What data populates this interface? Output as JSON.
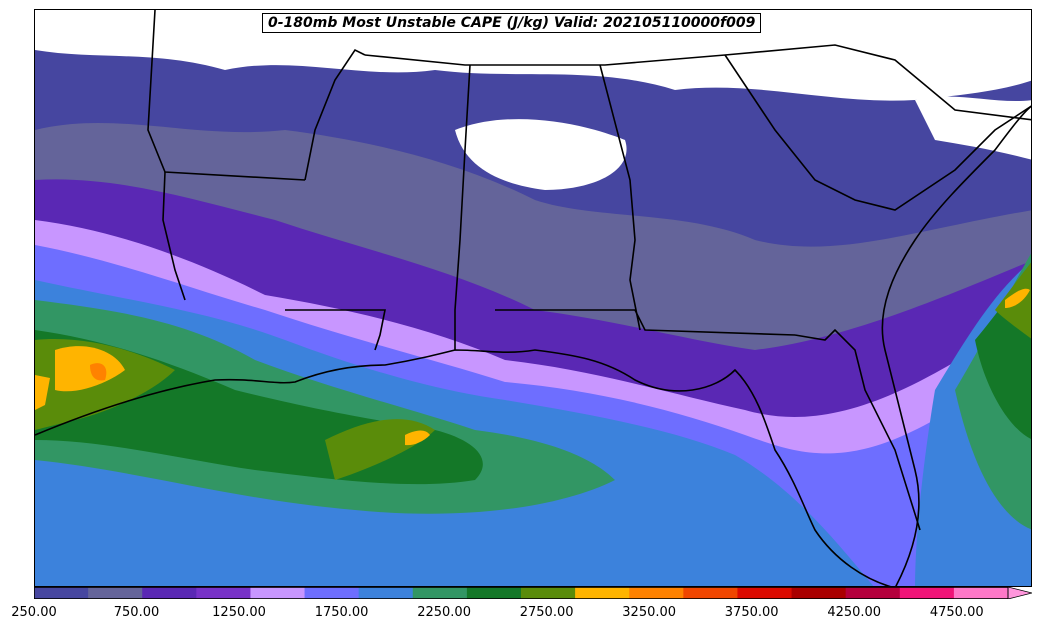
{
  "title": "0-180mb Most Unstable CAPE (J/kg) Valid: 202105110000f009",
  "colorbar": {
    "levels": [
      250,
      500,
      750,
      1000,
      1250,
      1500,
      1750,
      2000,
      2250,
      2500,
      2750,
      3000,
      3250,
      3500,
      3750,
      4000,
      4250,
      4500,
      4750,
      5000
    ],
    "colors": [
      "#4646a0",
      "#64649a",
      "#5a28b4",
      "#7832c8",
      "#c896ff",
      "#6e6eff",
      "#3c82dc",
      "#329664",
      "#147828",
      "#5a8c0a",
      "#ffb400",
      "#ff8200",
      "#f04600",
      "#dc0a00",
      "#aa0000",
      "#b4003c",
      "#f01478",
      "#ff78c8"
    ],
    "extend_color": "#ff96dc",
    "tick_labels": [
      "250.00",
      "750.00",
      "1250.00",
      "1750.00",
      "2250.00",
      "2750.00",
      "3250.00",
      "3750.00",
      "4250.00",
      "4750.00"
    ]
  },
  "map": {
    "region": "Southeastern United States and Gulf of Mexico",
    "field": "Most Unstable CAPE",
    "units": "J/kg",
    "layer": "0-180mb",
    "valid": "202105110000",
    "forecast_hour": "f009"
  }
}
